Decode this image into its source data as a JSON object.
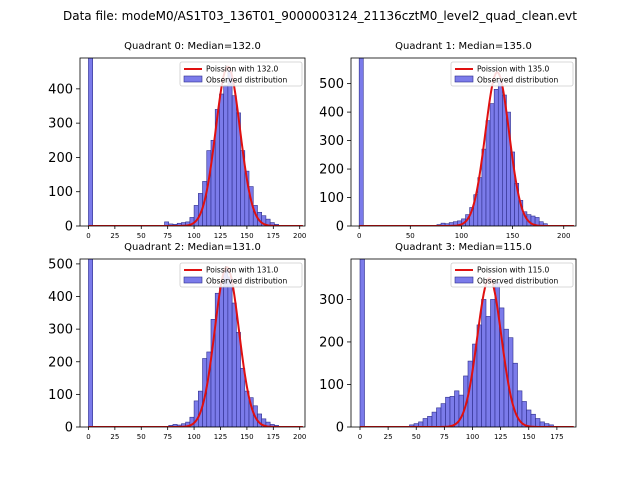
{
  "figure": {
    "suptitle": "Data file: modeM0/AS1T03_136T01_9000003124_21136cztM0_level2_quad_clean.evt"
  },
  "colors": {
    "bar_fill": "#7b7bea",
    "bar_edge": "#2e2e8c",
    "curve": "#e01010",
    "axis": "#000000"
  },
  "chart_data": [
    {
      "type": "bar",
      "title": "Quadrant 0: Median=132.0",
      "legend": {
        "placement": "top-right",
        "curve_label": "Poission with 132.0",
        "hist_label": "Observed distribution"
      },
      "xlim": [
        -8,
        205
      ],
      "ylim": [
        0,
        490
      ],
      "xticks": [
        0,
        25,
        50,
        75,
        100,
        125,
        150,
        175,
        200
      ],
      "yticks": [
        0,
        100,
        200,
        300,
        400
      ],
      "bin_width": 4,
      "bins": [
        {
          "x": 0,
          "y": 490
        },
        {
          "x": 72,
          "y": 12
        },
        {
          "x": 76,
          "y": 6
        },
        {
          "x": 80,
          "y": 5
        },
        {
          "x": 84,
          "y": 8
        },
        {
          "x": 88,
          "y": 10
        },
        {
          "x": 92,
          "y": 12
        },
        {
          "x": 96,
          "y": 25
        },
        {
          "x": 100,
          "y": 60
        },
        {
          "x": 104,
          "y": 95
        },
        {
          "x": 108,
          "y": 130
        },
        {
          "x": 112,
          "y": 220
        },
        {
          "x": 116,
          "y": 250
        },
        {
          "x": 120,
          "y": 340
        },
        {
          "x": 124,
          "y": 385
        },
        {
          "x": 128,
          "y": 410
        },
        {
          "x": 132,
          "y": 450
        },
        {
          "x": 136,
          "y": 380
        },
        {
          "x": 140,
          "y": 330
        },
        {
          "x": 144,
          "y": 220
        },
        {
          "x": 148,
          "y": 160
        },
        {
          "x": 152,
          "y": 115
        },
        {
          "x": 156,
          "y": 60
        },
        {
          "x": 160,
          "y": 40
        },
        {
          "x": 164,
          "y": 30
        },
        {
          "x": 168,
          "y": 20
        },
        {
          "x": 172,
          "y": 10
        },
        {
          "x": 176,
          "y": 5
        }
      ],
      "poisson_mean": 132.0,
      "poisson_peak": 465
    },
    {
      "type": "bar",
      "title": "Quadrant 1: Median=135.0",
      "legend": {
        "placement": "top-right",
        "curve_label": "Poission with 135.0",
        "hist_label": "Observed distribution"
      },
      "xlim": [
        -8,
        212
      ],
      "ylim": [
        0,
        590
      ],
      "xticks": [
        0,
        50,
        100,
        150,
        200
      ],
      "yticks": [
        0,
        100,
        200,
        300,
        400,
        500
      ],
      "bin_width": 4,
      "bins": [
        {
          "x": 0,
          "y": 590
        },
        {
          "x": 76,
          "y": 5
        },
        {
          "x": 80,
          "y": 10
        },
        {
          "x": 84,
          "y": 8
        },
        {
          "x": 88,
          "y": 12
        },
        {
          "x": 92,
          "y": 15
        },
        {
          "x": 96,
          "y": 18
        },
        {
          "x": 100,
          "y": 25
        },
        {
          "x": 104,
          "y": 40
        },
        {
          "x": 108,
          "y": 65
        },
        {
          "x": 112,
          "y": 110
        },
        {
          "x": 116,
          "y": 170
        },
        {
          "x": 120,
          "y": 270
        },
        {
          "x": 124,
          "y": 370
        },
        {
          "x": 128,
          "y": 430
        },
        {
          "x": 132,
          "y": 480
        },
        {
          "x": 136,
          "y": 510
        },
        {
          "x": 140,
          "y": 460
        },
        {
          "x": 144,
          "y": 400
        },
        {
          "x": 148,
          "y": 260
        },
        {
          "x": 152,
          "y": 150
        },
        {
          "x": 156,
          "y": 90
        },
        {
          "x": 160,
          "y": 50
        },
        {
          "x": 164,
          "y": 40
        },
        {
          "x": 168,
          "y": 35
        },
        {
          "x": 172,
          "y": 30
        },
        {
          "x": 176,
          "y": 15
        },
        {
          "x": 180,
          "y": 8
        }
      ],
      "poisson_mean": 135.0,
      "poisson_peak": 540
    },
    {
      "type": "bar",
      "title": "Quadrant 2: Median=131.0",
      "legend": {
        "placement": "top-right",
        "curve_label": "Poission with 131.0",
        "hist_label": "Observed distribution"
      },
      "xlim": [
        -8,
        205
      ],
      "ylim": [
        0,
        515
      ],
      "xticks": [
        0,
        25,
        50,
        75,
        100,
        125,
        150,
        175,
        200
      ],
      "yticks": [
        0,
        100,
        200,
        300,
        400,
        500
      ],
      "bin_width": 4,
      "bins": [
        {
          "x": 0,
          "y": 515
        },
        {
          "x": 76,
          "y": 5
        },
        {
          "x": 80,
          "y": 8
        },
        {
          "x": 84,
          "y": 6
        },
        {
          "x": 88,
          "y": 10
        },
        {
          "x": 92,
          "y": 15
        },
        {
          "x": 96,
          "y": 30
        },
        {
          "x": 100,
          "y": 80
        },
        {
          "x": 104,
          "y": 110
        },
        {
          "x": 108,
          "y": 210
        },
        {
          "x": 112,
          "y": 230
        },
        {
          "x": 116,
          "y": 330
        },
        {
          "x": 120,
          "y": 410
        },
        {
          "x": 124,
          "y": 430
        },
        {
          "x": 128,
          "y": 480
        },
        {
          "x": 132,
          "y": 460
        },
        {
          "x": 136,
          "y": 380
        },
        {
          "x": 140,
          "y": 290
        },
        {
          "x": 144,
          "y": 180
        },
        {
          "x": 148,
          "y": 110
        },
        {
          "x": 152,
          "y": 90
        },
        {
          "x": 156,
          "y": 65
        },
        {
          "x": 160,
          "y": 40
        },
        {
          "x": 164,
          "y": 25
        },
        {
          "x": 168,
          "y": 15
        },
        {
          "x": 172,
          "y": 8
        },
        {
          "x": 176,
          "y": 5
        }
      ],
      "poisson_mean": 131.0,
      "poisson_peak": 490
    },
    {
      "type": "bar",
      "title": "Quadrant 3: Median=115.0",
      "legend": {
        "placement": "top-right",
        "curve_label": "Poission with 115.0",
        "hist_label": "Observed distribution"
      },
      "xlim": [
        -8,
        192
      ],
      "ylim": [
        0,
        395
      ],
      "xticks": [
        0,
        25,
        50,
        75,
        100,
        125,
        150,
        175
      ],
      "yticks": [
        0,
        100,
        200,
        300
      ],
      "bin_width": 4,
      "bins": [
        {
          "x": 0,
          "y": 395
        },
        {
          "x": 44,
          "y": 5
        },
        {
          "x": 48,
          "y": 8
        },
        {
          "x": 52,
          "y": 12
        },
        {
          "x": 56,
          "y": 20
        },
        {
          "x": 60,
          "y": 25
        },
        {
          "x": 64,
          "y": 35
        },
        {
          "x": 68,
          "y": 45
        },
        {
          "x": 72,
          "y": 55
        },
        {
          "x": 76,
          "y": 70
        },
        {
          "x": 80,
          "y": 72
        },
        {
          "x": 84,
          "y": 85
        },
        {
          "x": 88,
          "y": 75
        },
        {
          "x": 92,
          "y": 120
        },
        {
          "x": 96,
          "y": 155
        },
        {
          "x": 100,
          "y": 195
        },
        {
          "x": 104,
          "y": 240
        },
        {
          "x": 108,
          "y": 300
        },
        {
          "x": 112,
          "y": 260
        },
        {
          "x": 116,
          "y": 300
        },
        {
          "x": 120,
          "y": 340
        },
        {
          "x": 124,
          "y": 280
        },
        {
          "x": 128,
          "y": 230
        },
        {
          "x": 132,
          "y": 210
        },
        {
          "x": 136,
          "y": 150
        },
        {
          "x": 140,
          "y": 85
        },
        {
          "x": 144,
          "y": 60
        },
        {
          "x": 148,
          "y": 40
        },
        {
          "x": 152,
          "y": 30
        },
        {
          "x": 156,
          "y": 20
        },
        {
          "x": 160,
          "y": 12
        },
        {
          "x": 164,
          "y": 8
        },
        {
          "x": 168,
          "y": 5
        }
      ],
      "poisson_mean": 115.0,
      "poisson_peak": 350
    }
  ]
}
